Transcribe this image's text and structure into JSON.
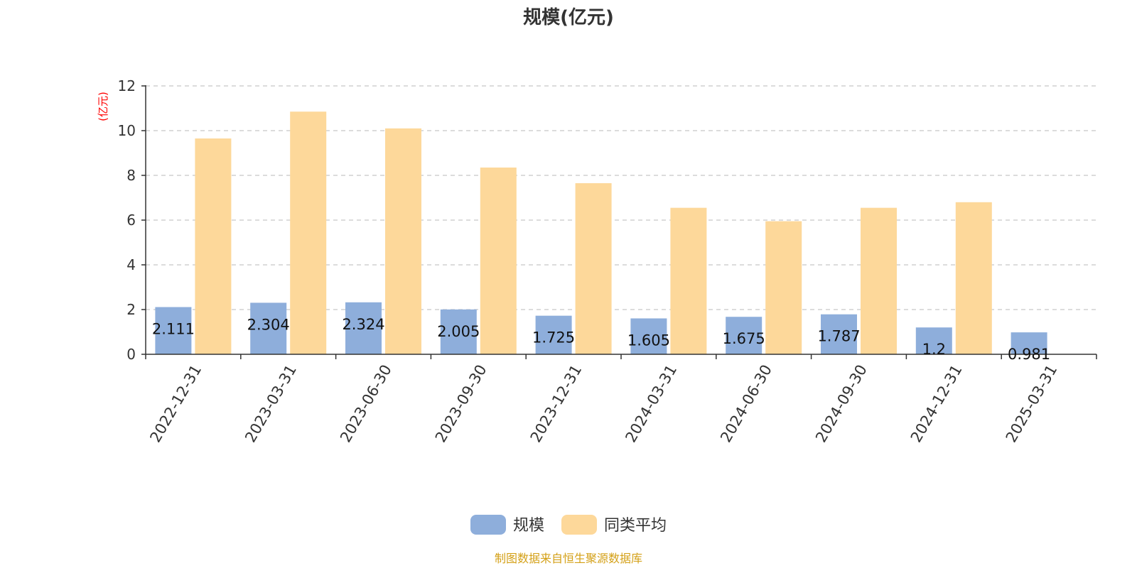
{
  "chart_data": {
    "type": "bar",
    "title": "规模(亿元)",
    "unit_label": "(亿元)",
    "categories": [
      "2022-12-31",
      "2023-03-31",
      "2023-06-30",
      "2023-09-30",
      "2023-12-31",
      "2024-03-31",
      "2024-06-30",
      "2024-09-30",
      "2024-12-31",
      "2025-03-31"
    ],
    "series": [
      {
        "name": "规模",
        "color": "#8eaedb",
        "values": [
          2.111,
          2.304,
          2.324,
          2.005,
          1.725,
          1.605,
          1.675,
          1.787,
          1.2,
          0.981
        ],
        "show_labels": true
      },
      {
        "name": "同类平均",
        "color": "#fdd89a",
        "values": [
          9.65,
          10.85,
          10.1,
          8.35,
          7.65,
          6.55,
          5.95,
          6.55,
          6.8,
          null
        ],
        "show_labels": false
      }
    ],
    "ylim": [
      0,
      12
    ],
    "yticks": [
      0,
      2,
      4,
      6,
      8,
      10,
      12
    ],
    "grid": true,
    "legend_position": "bottom-center",
    "source": "制图数据来自恒生聚源数据库"
  }
}
